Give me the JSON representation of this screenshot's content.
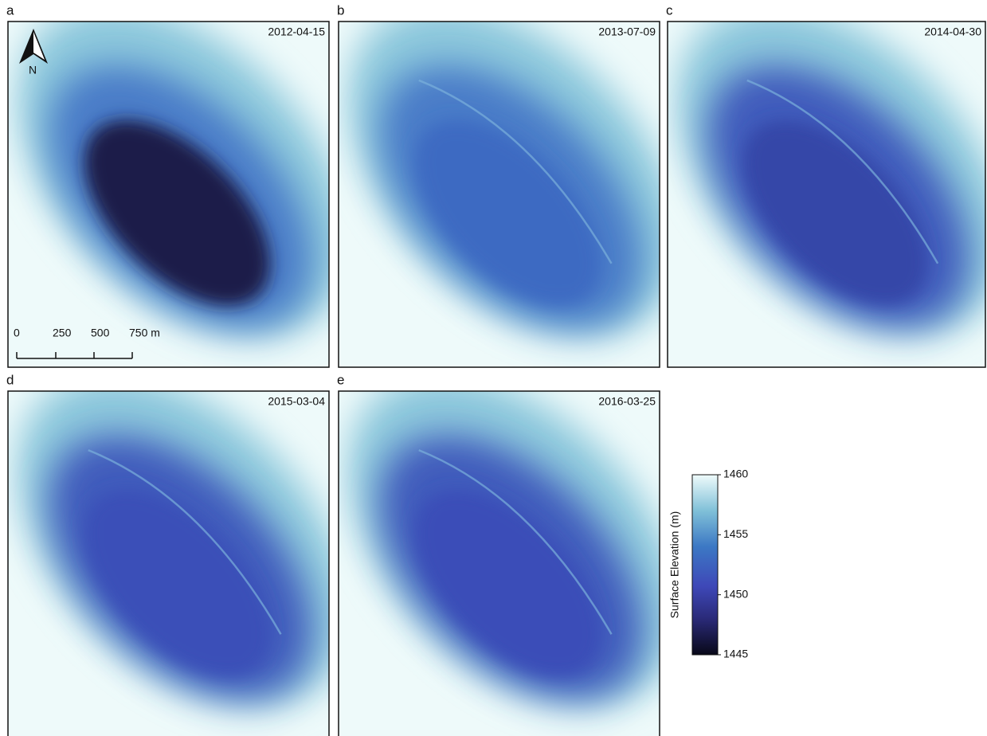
{
  "panels": [
    {
      "letter": "a",
      "date": "2012-04-15"
    },
    {
      "letter": "b",
      "date": "2013-07-09"
    },
    {
      "letter": "c",
      "date": "2014-04-30"
    },
    {
      "letter": "d",
      "date": "2015-03-04"
    },
    {
      "letter": "e",
      "date": "2016-03-25"
    }
  ],
  "north_label": "N",
  "scale_bar": {
    "labels": [
      "0",
      "250",
      "500",
      "750 m"
    ]
  },
  "colorbar": {
    "title": "Surface Elevation (m)",
    "lim": [
      1445,
      1460
    ],
    "ticks": [
      1460,
      1455,
      1450,
      1445
    ]
  }
}
